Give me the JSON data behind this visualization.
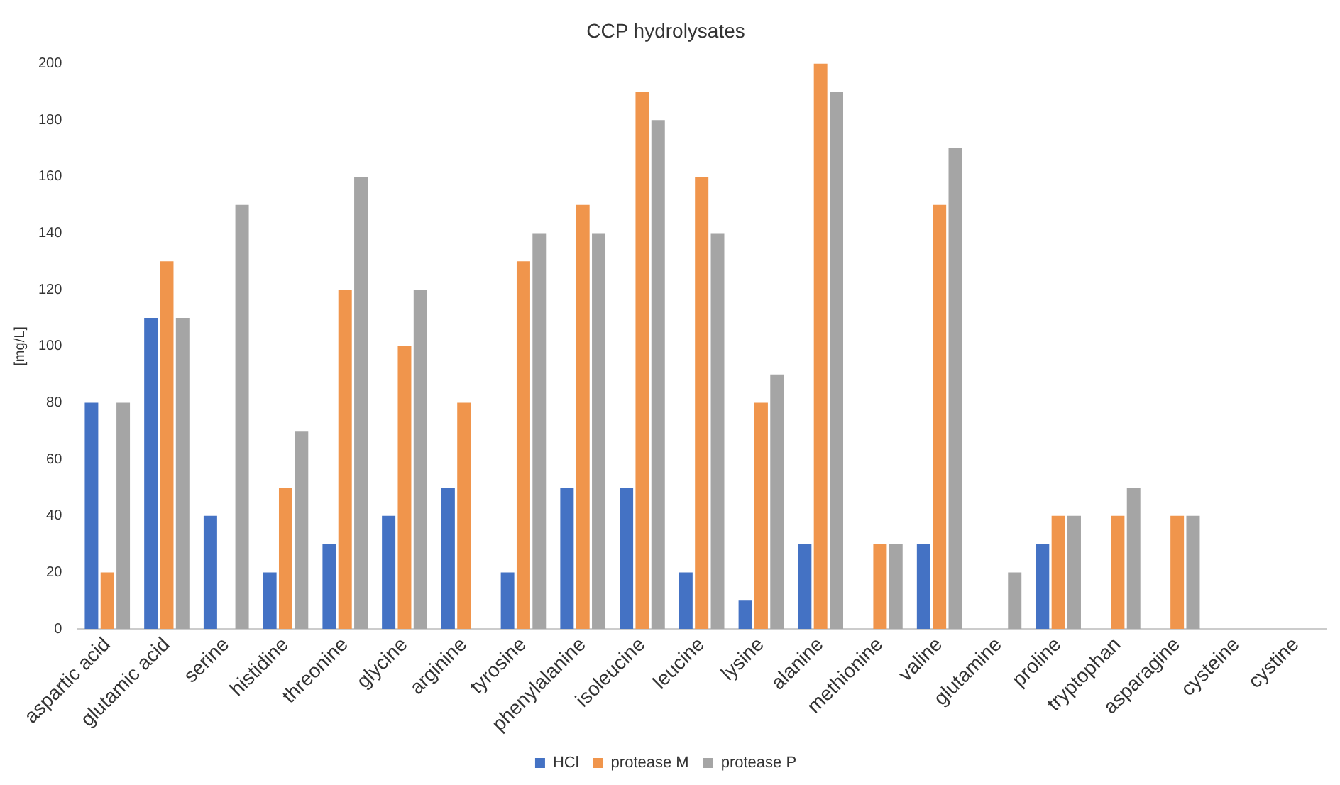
{
  "chart_data": {
    "type": "bar",
    "title": "CCP hydrolysates",
    "ylabel": "[mg/L]",
    "categories": [
      "aspartic acid",
      "glutamic acid",
      "serine",
      "histidine",
      "threonine",
      "glycine",
      "arginine",
      "tyrosine",
      "phenylalanine",
      "isoleucine",
      "leucine",
      "lysine",
      "alanine",
      "methionine",
      "valine",
      "glutamine",
      "proline",
      "tryptophan",
      "asparagine",
      "cysteine",
      "cystine"
    ],
    "series": [
      {
        "name": "HCl",
        "color": "#4472c4",
        "values": [
          80,
          110,
          40,
          20,
          30,
          40,
          50,
          20,
          50,
          50,
          20,
          10,
          30,
          0,
          30,
          0,
          30,
          0,
          0,
          0,
          0
        ]
      },
      {
        "name": "protease M",
        "color": "#f0954c",
        "values": [
          20,
          130,
          0,
          50,
          120,
          100,
          80,
          130,
          150,
          190,
          160,
          80,
          200,
          30,
          150,
          0,
          40,
          40,
          40,
          0,
          0
        ]
      },
      {
        "name": "protease P",
        "color": "#a5a5a5",
        "values": [
          80,
          110,
          150,
          70,
          160,
          120,
          0,
          140,
          140,
          180,
          140,
          90,
          190,
          30,
          170,
          20,
          40,
          50,
          40,
          0,
          0
        ]
      }
    ],
    "ylim": [
      0,
      200
    ],
    "yticks": [
      0,
      20,
      40,
      60,
      80,
      100,
      120,
      140,
      160,
      180,
      200
    ],
    "grid": false,
    "legend": "bottom"
  }
}
